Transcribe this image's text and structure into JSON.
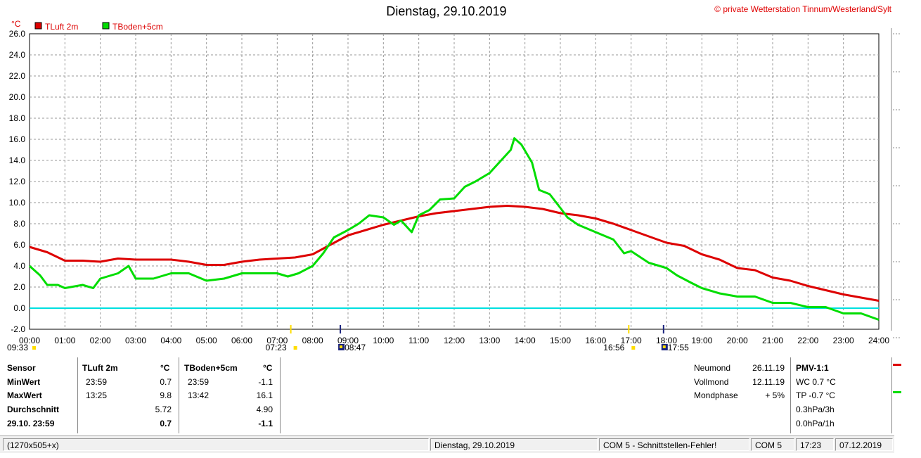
{
  "chart_data": {
    "type": "line",
    "title": "Dienstag, 29.10.2019",
    "copyright": "© private Wetterstation Tinnum/Westerland/Sylt",
    "ylabel": "°C",
    "ylim": [
      -2,
      26
    ],
    "yticks": [
      "-2.0",
      "0.0",
      "2.0",
      "4.0",
      "6.0",
      "8.0",
      "10.0",
      "12.0",
      "14.0",
      "16.0",
      "18.0",
      "20.0",
      "22.0",
      "24.0",
      "26.0"
    ],
    "xlim": [
      0,
      24
    ],
    "xticks": [
      "00:00",
      "01:00",
      "02:00",
      "03:00",
      "04:00",
      "05:00",
      "06:00",
      "07:00",
      "08:00",
      "09:00",
      "10:00",
      "11:00",
      "12:00",
      "13:00",
      "14:00",
      "15:00",
      "16:00",
      "17:00",
      "18:00",
      "19:00",
      "20:00",
      "21:00",
      "22:00",
      "23:00",
      "24:00"
    ],
    "grid": true,
    "legend": "top-left",
    "zero_line_color": "#00e0e0",
    "series": [
      {
        "name": "TLuft 2m",
        "color": "#dd0000",
        "x": [
          0,
          0.5,
          1,
          1.5,
          2,
          2.5,
          3,
          3.5,
          4,
          4.5,
          5,
          5.5,
          6,
          6.5,
          7,
          7.5,
          8,
          8.5,
          9,
          9.5,
          10,
          10.5,
          11,
          11.5,
          12,
          12.5,
          13,
          13.5,
          14,
          14.5,
          15,
          15.5,
          16,
          16.5,
          17,
          17.5,
          18,
          18.5,
          19,
          19.5,
          20,
          20.5,
          21,
          21.5,
          22,
          22.5,
          23,
          23.5,
          24
        ],
        "y": [
          5.8,
          5.3,
          4.5,
          4.5,
          4.4,
          4.7,
          4.6,
          4.6,
          4.6,
          4.4,
          4.1,
          4.1,
          4.4,
          4.6,
          4.7,
          4.8,
          5.1,
          6.0,
          6.9,
          7.4,
          7.9,
          8.3,
          8.7,
          9.0,
          9.2,
          9.4,
          9.6,
          9.7,
          9.6,
          9.4,
          9.0,
          8.8,
          8.5,
          8.0,
          7.4,
          6.8,
          6.2,
          5.9,
          5.1,
          4.6,
          3.8,
          3.6,
          2.9,
          2.6,
          2.1,
          1.7,
          1.3,
          1.0,
          0.7
        ]
      },
      {
        "name": "TBoden+5cm",
        "color": "#00dd00",
        "x": [
          0,
          0.3,
          0.5,
          0.8,
          1,
          1.5,
          1.8,
          2,
          2.5,
          2.8,
          3,
          3.5,
          4,
          4.5,
          5,
          5.5,
          6,
          6.5,
          7,
          7.3,
          7.6,
          8,
          8.3,
          8.6,
          9,
          9.3,
          9.6,
          10,
          10.3,
          10.5,
          10.8,
          11,
          11.3,
          11.6,
          12,
          12.3,
          12.6,
          13,
          13.3,
          13.6,
          13.7,
          13.9,
          14.2,
          14.4,
          14.7,
          15,
          15.2,
          15.5,
          16,
          16.5,
          16.8,
          17,
          17.5,
          18,
          18.3,
          18.7,
          19,
          19.5,
          20,
          20.5,
          21,
          21.5,
          22,
          22.5,
          23,
          23.5,
          24
        ],
        "y": [
          4.0,
          3.1,
          2.2,
          2.2,
          1.9,
          2.2,
          1.9,
          2.8,
          3.3,
          4.0,
          2.8,
          2.8,
          3.3,
          3.3,
          2.6,
          2.8,
          3.3,
          3.3,
          3.3,
          3.0,
          3.3,
          4.0,
          5.2,
          6.7,
          7.4,
          8.0,
          8.8,
          8.6,
          7.9,
          8.3,
          7.2,
          8.8,
          9.3,
          10.3,
          10.4,
          11.5,
          12.0,
          12.8,
          13.9,
          15.0,
          16.1,
          15.5,
          13.8,
          11.2,
          10.8,
          9.5,
          8.6,
          7.9,
          7.2,
          6.5,
          5.2,
          5.4,
          4.3,
          3.8,
          3.1,
          2.4,
          1.9,
          1.4,
          1.1,
          1.1,
          0.5,
          0.5,
          0.1,
          0.1,
          -0.5,
          -0.5,
          -1.1
        ]
      }
    ],
    "markers": [
      {
        "label": "09:33",
        "type": "sun"
      },
      {
        "label": "07:23",
        "type": "sun"
      },
      {
        "label": "08:47",
        "type": "moon"
      },
      {
        "label": "16:56",
        "type": "sun"
      },
      {
        "label": "17:55",
        "type": "moon"
      }
    ]
  },
  "stats": {
    "col_sensor": "Sensor",
    "min_label": "MinWert",
    "max_label": "MaxWert",
    "avg_label": "Durchschnitt",
    "now_label": "29.10. 23:59",
    "s1": {
      "name": "TLuft 2m",
      "unit": "°C",
      "min_time": "23:59",
      "min_val": "0.7",
      "max_time": "13:25",
      "max_val": "9.8",
      "avg": "5.72",
      "now": "0.7"
    },
    "s2": {
      "name": "TBoden+5cm",
      "unit": "°C",
      "min_time": "23:59",
      "min_val": "-1.1",
      "max_time": "13:42",
      "max_val": "16.1",
      "avg": "4.90",
      "now": "-1.1"
    }
  },
  "moon": {
    "neumond_label": "Neumond",
    "neumond_date": "26.11.19",
    "vollmond_label": "Vollmond",
    "vollmond_date": "12.11.19",
    "phase_label": "Mondphase",
    "phase_value": "+ 5%"
  },
  "pmv": {
    "title": "PMV-1:1",
    "wc": "WC 0.7 °C",
    "tp": "TP -0.7 °C",
    "p3h": "0.3hPa/3h",
    "p1h": "0.0hPa/1h"
  },
  "statusbar": {
    "size": "(1270x505+x)",
    "date": "Dienstag, 29.10.2019",
    "error": "COM 5 - Schnittstellen-Fehler!",
    "port": "COM 5",
    "time": "17:23",
    "today": "07.12.2019"
  }
}
